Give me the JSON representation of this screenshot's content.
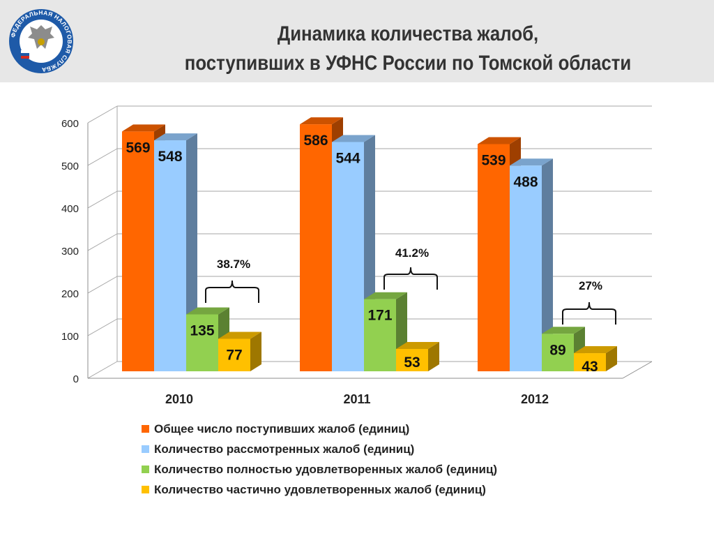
{
  "title": {
    "line1": "Динамика  количества  жалоб,",
    "line2": "поступивших в УФНС России по Томской области"
  },
  "logo": {
    "name": "fns-emblem-icon",
    "text": "ФЕДЕРАЛЬНАЯ НАЛОГОВАЯ СЛУЖБА"
  },
  "chart_data": {
    "type": "bar",
    "categories": [
      "2010",
      "2011",
      "2012"
    ],
    "ylim": [
      0,
      600
    ],
    "yticks": [
      0,
      100,
      200,
      300,
      400,
      500,
      600
    ],
    "grid": true,
    "legend_position": "bottom",
    "series": [
      {
        "name": "Общее число поступивших жалоб (единиц)",
        "values": [
          569,
          586,
          539
        ],
        "color": "#ff6600"
      },
      {
        "name": "Количество рассмотренных жалоб (единиц)",
        "values": [
          548,
          544,
          488
        ],
        "color": "#99ccff"
      },
      {
        "name": "Количество полностью удовлетворенных жалоб (единиц)",
        "values": [
          135,
          171,
          89
        ],
        "color": "#92d050"
      },
      {
        "name": "Количество частично удовлетворенных жалоб (единиц)",
        "values": [
          77,
          53,
          43
        ],
        "color": "#ffc000"
      }
    ],
    "annotations": [
      "38.7%",
      "41.2%",
      "27%"
    ]
  }
}
